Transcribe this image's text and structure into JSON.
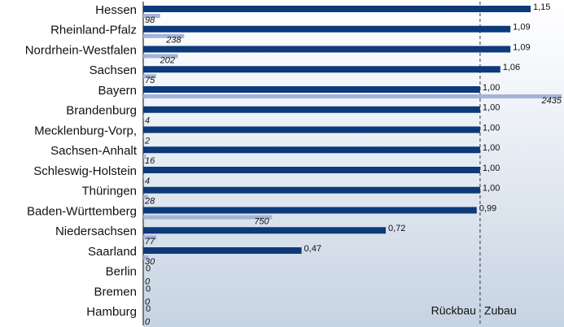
{
  "chart_data": {
    "type": "hbar",
    "categories": [
      "Hessen",
      "Rheinland-Pfalz",
      "Nordrhein-Westfalen",
      "Sachsen",
      "Bayern",
      "Brandenburg",
      "Mecklenburg-Vorp,",
      "Sachsen-Anhalt",
      "Schleswig-Holstein",
      "Thüringen",
      "Baden-Württemberg",
      "Niedersachsen",
      "Saarland",
      "Berlin",
      "Bremen",
      "Hamburg"
    ],
    "series": [
      {
        "color": "#0d3a7a",
        "values": [
          1.15,
          1.09,
          1.09,
          1.06,
          1.0,
          1.0,
          1.0,
          1.0,
          1.0,
          1.0,
          0.99,
          0.72,
          0.47,
          0,
          0,
          0
        ],
        "value_labels": [
          "1,15",
          "1,09",
          "1,09",
          "1,06",
          "1,00",
          "1,00",
          "1,00",
          "1,00",
          "1,00",
          "1,00",
          "0,99",
          "0,72",
          "0,47",
          "0",
          "0",
          "0"
        ]
      },
      {
        "color": "#a5b3da",
        "axis": "x2",
        "values": [
          98,
          238,
          202,
          75,
          2435,
          4,
          2,
          16,
          4,
          28,
          750,
          77,
          30,
          0,
          0,
          0
        ]
      }
    ],
    "xlim": [
      0,
      1.15
    ],
    "x2lim": [
      0,
      2435
    ],
    "reference": 1,
    "annotations": {
      "left": "Rückbau",
      "right": "Zubau"
    }
  }
}
